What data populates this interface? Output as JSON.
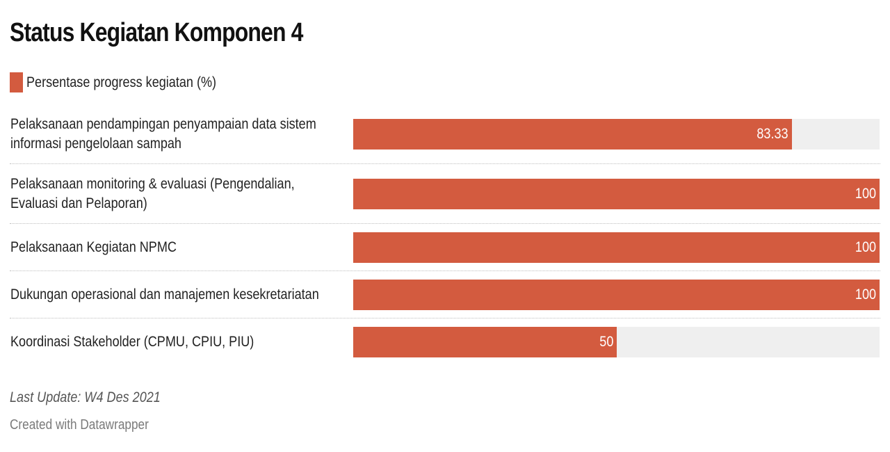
{
  "chart_data": {
    "type": "bar",
    "orientation": "horizontal",
    "title": "Status Kegiatan Komponen 4",
    "legend": [
      {
        "label": "Persentase progress kegiatan (%)",
        "color": "#d35b3f"
      }
    ],
    "categories": [
      "Pelaksanaan pendampingan penyampaian data sistem informasi pengelolaan sampah",
      "Pelaksanaan monitoring & evaluasi (Pengendalian, Evaluasi dan Pelaporan)",
      "Pelaksanaan Kegiatan NPMC",
      "Dukungan operasional dan manajemen kesekretariatan",
      "Koordinasi Stakeholder (CPMU, CPIU, PIU)"
    ],
    "values": [
      83.33,
      100,
      100,
      100,
      50
    ],
    "value_labels": [
      "83.33",
      "100",
      "100",
      "100",
      "50"
    ],
    "xlim": [
      0,
      100
    ],
    "bar_color": "#d35b3f",
    "track_color": "#efefef",
    "notes": "Last Update: W4 Des 2021",
    "credit": "Created with Datawrapper"
  }
}
